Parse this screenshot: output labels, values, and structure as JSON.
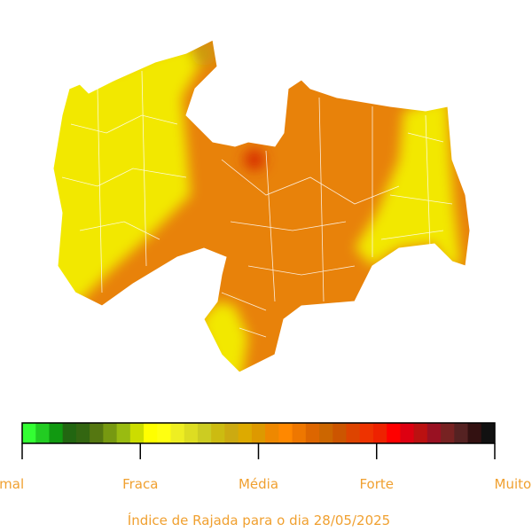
{
  "legend": {
    "labels": [
      "Normal",
      "Fraca",
      "Média",
      "Forte",
      "Muito Forte"
    ],
    "colors": [
      "#33ff33",
      "#22cc22",
      "#119911",
      "#226611",
      "#336611",
      "#557711",
      "#779911",
      "#99bb11",
      "#ccdd00",
      "#ffff00",
      "#ffff11",
      "#eeee22",
      "#dddd22",
      "#cccc22",
      "#ccbb11",
      "#ccaa11",
      "#ddaa00",
      "#dd9900",
      "#ee8800",
      "#ff8800",
      "#ee7700",
      "#dd6600",
      "#cc6600",
      "#cc5500",
      "#dd4400",
      "#ee3300",
      "#ee2200",
      "#ff0000",
      "#dd0011",
      "#bb1111",
      "#991122",
      "#772222",
      "#552222",
      "#331111",
      "#111111"
    ]
  },
  "caption": "Índice de Rajada para o dia 28/05/2025"
}
